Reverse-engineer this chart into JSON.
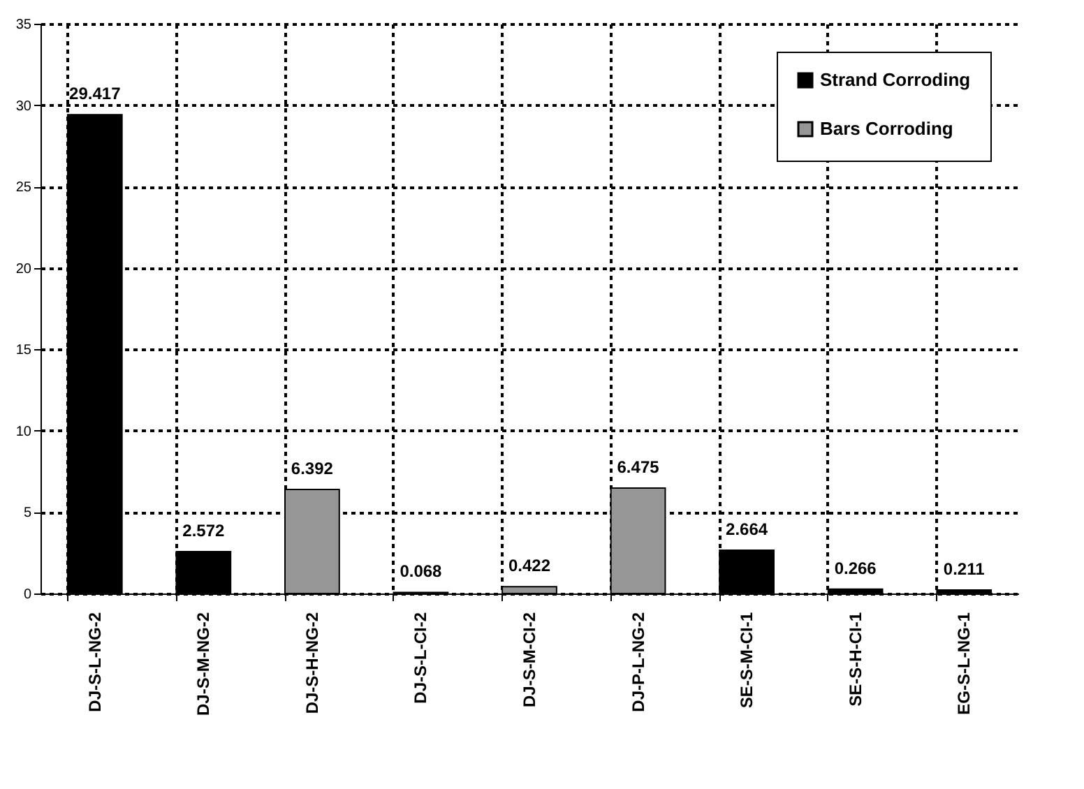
{
  "chart_data": {
    "type": "bar",
    "categories": [
      "DJ-S-L-NG-2",
      "DJ-S-M-NG-2",
      "DJ-S-H-NG-2",
      "DJ-S-L-CI-2",
      "DJ-S-M-CI-2",
      "DJ-P-L-NG-2",
      "SE-S-M-CI-1",
      "SE-S-H-CI-1",
      "EG-S-L-NG-1"
    ],
    "series": [
      {
        "name": "Strand Corroding",
        "color": "#000000",
        "values": [
          29.417,
          2.572,
          null,
          0.068,
          null,
          null,
          2.664,
          0.266,
          0.211
        ]
      },
      {
        "name": "Bars Corroding",
        "color": "#969696",
        "values": [
          null,
          null,
          6.392,
          null,
          0.422,
          6.475,
          null,
          null,
          null
        ]
      }
    ],
    "ylim": [
      0,
      35
    ],
    "yticks": [
      0,
      5,
      10,
      15,
      20,
      25,
      30,
      35
    ],
    "grid": true,
    "legend": "top right",
    "data_labels": true
  }
}
